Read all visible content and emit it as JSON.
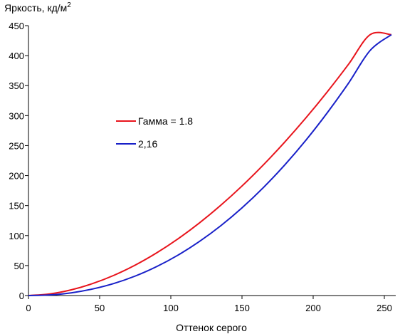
{
  "chart_data": {
    "type": "line",
    "title": "",
    "ylabel": "Яркость, кд/м",
    "ylabel_superscript": "2",
    "xlabel": "Оттенок серого",
    "xlim": [
      0,
      255
    ],
    "ylim": [
      0,
      450
    ],
    "x_ticks": [
      0,
      50,
      100,
      150,
      200,
      250
    ],
    "y_ticks": [
      0,
      50,
      100,
      150,
      200,
      250,
      300,
      350,
      400,
      450
    ],
    "grid": false,
    "legend_position": "left-center",
    "series": [
      {
        "name": "Гамма = 1.8",
        "color": "#e8141c",
        "x": [
          0,
          15,
          30,
          45,
          60,
          75,
          90,
          105,
          120,
          135,
          150,
          165,
          180,
          195,
          210,
          225,
          240,
          255
        ],
        "y": [
          0,
          2.7,
          9.5,
          19.9,
          33.7,
          50.8,
          71.1,
          94.5,
          120.9,
          150.3,
          182.6,
          217.8,
          255.8,
          296.5,
          339.9,
          386.1,
          434.9,
          435
        ]
      },
      {
        "name": "2,16",
        "color": "#1820c8",
        "x": [
          0,
          15,
          30,
          45,
          60,
          75,
          90,
          105,
          120,
          135,
          150,
          165,
          180,
          195,
          210,
          225,
          240,
          255
        ],
        "y": [
          0,
          1.0,
          4.5,
          10.9,
          20.1,
          32.5,
          48.2,
          67.3,
          90.0,
          116.2,
          146.2,
          180.0,
          217.7,
          259.3,
          305.0,
          354.7,
          408.6,
          435
        ]
      }
    ]
  }
}
